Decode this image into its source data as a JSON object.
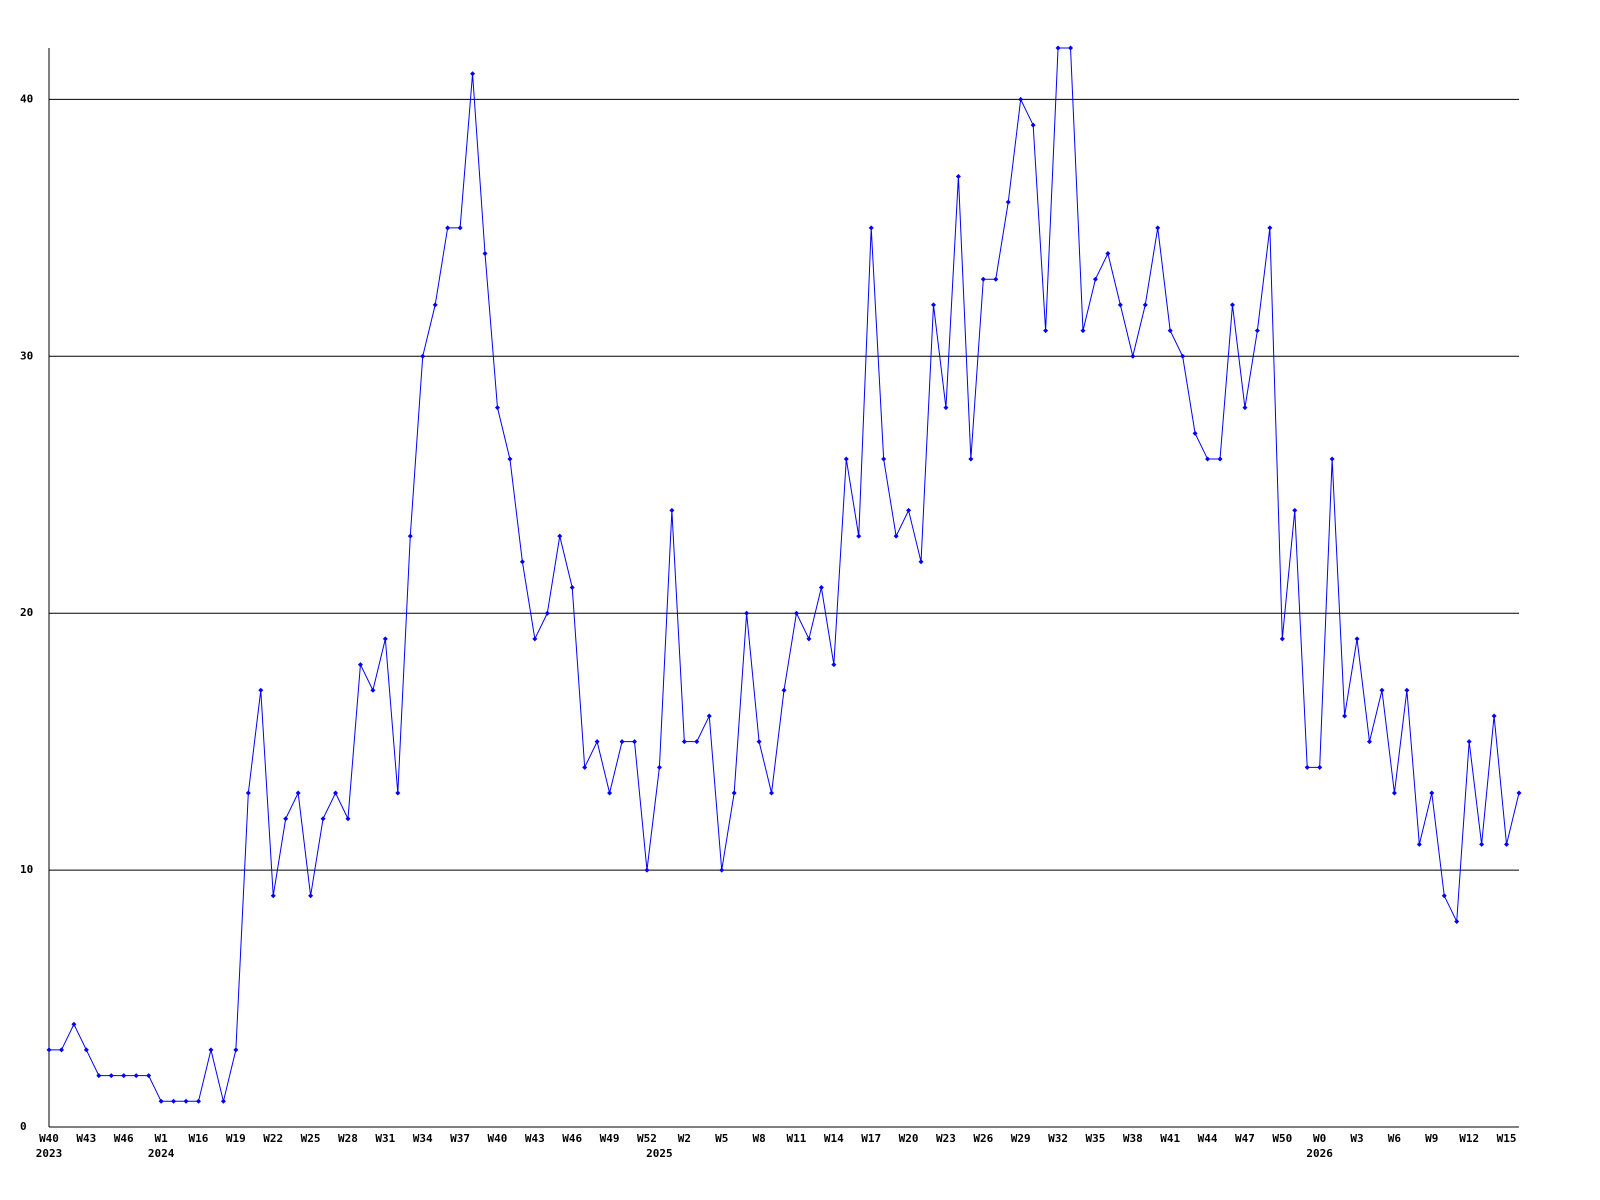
{
  "chart_data": {
    "type": "line",
    "categories": [
      "W40",
      null,
      null,
      "W43",
      null,
      null,
      "W46",
      null,
      null,
      "W1",
      null,
      null,
      "W16",
      null,
      null,
      "W19",
      null,
      null,
      "W22",
      null,
      null,
      "W25",
      null,
      null,
      "W28",
      null,
      null,
      "W31",
      null,
      null,
      "W34",
      null,
      null,
      "W37",
      null,
      null,
      "W40",
      null,
      null,
      "W43",
      null,
      null,
      "W46",
      null,
      null,
      "W49",
      null,
      null,
      "W52",
      null,
      null,
      "W2",
      null,
      null,
      "W5",
      null,
      null,
      "W8",
      null,
      null,
      "W11",
      null,
      null,
      "W14",
      null,
      null,
      "W17",
      null,
      null,
      "W20",
      null,
      null,
      "W23",
      null,
      null,
      "W26",
      null,
      null,
      "W29",
      null,
      null,
      "W32",
      null,
      null,
      "W35",
      null,
      null,
      "W38",
      null,
      null,
      "W41",
      null,
      null,
      "W44",
      null,
      null,
      "W47",
      null,
      null,
      "W50",
      null,
      null,
      "W0",
      null,
      null,
      "W3",
      null,
      null,
      "W6",
      null,
      null,
      "W9",
      null,
      null,
      "W12",
      null,
      null,
      "W15",
      null
    ],
    "year_labels": [
      "2023",
      null,
      null,
      null,
      null,
      null,
      null,
      null,
      null,
      "2024",
      null,
      null,
      null,
      null,
      null,
      null,
      null,
      null,
      null,
      null,
      null,
      null,
      null,
      null,
      null,
      null,
      null,
      null,
      null,
      null,
      null,
      null,
      null,
      null,
      null,
      null,
      null,
      null,
      null,
      null,
      null,
      null,
      null,
      null,
      null,
      null,
      null,
      null,
      null,
      "2025",
      null,
      null,
      null,
      null,
      null,
      null,
      null,
      null,
      null,
      null,
      null,
      null,
      null,
      null,
      null,
      null,
      null,
      null,
      null,
      null,
      null,
      null,
      null,
      null,
      null,
      null,
      null,
      null,
      null,
      null,
      null,
      null,
      null,
      null,
      null,
      null,
      null,
      null,
      null,
      null,
      null,
      null,
      null,
      null,
      null,
      null,
      null,
      null,
      null,
      null,
      null,
      null,
      "2026",
      null,
      null,
      null,
      null,
      null,
      null,
      null,
      null,
      null,
      null,
      null,
      null,
      null,
      null,
      null,
      null
    ],
    "series": [
      {
        "color": "#0000ff",
        "values": [
          3,
          3,
          4,
          3,
          2,
          2,
          2,
          2,
          2,
          1,
          1,
          1,
          1,
          3,
          1,
          3,
          13,
          17,
          9,
          12,
          13,
          9,
          12,
          13,
          12,
          18,
          17,
          19,
          13,
          23,
          30,
          32,
          35,
          35,
          41,
          34,
          28,
          26,
          22,
          19,
          20,
          23,
          21,
          14,
          15,
          13,
          15,
          15,
          10,
          14,
          24,
          15,
          15,
          16,
          10,
          13,
          20,
          15,
          13,
          17,
          20,
          19,
          21,
          18,
          26,
          23,
          35,
          26,
          23,
          24,
          22,
          32,
          28,
          37,
          26,
          33,
          33,
          36,
          40,
          39,
          31,
          42,
          42,
          31,
          33,
          34,
          32,
          30,
          32,
          35,
          31,
          30,
          27,
          26,
          26,
          32,
          28,
          31,
          35,
          19,
          24,
          14,
          14,
          26,
          16,
          19,
          15,
          17,
          13,
          17,
          11,
          13,
          9,
          8,
          15,
          11,
          16,
          11,
          13
        ]
      }
    ],
    "ylim": [
      0,
      42
    ],
    "yticks": [
      0,
      10,
      20,
      30,
      40
    ],
    "grid": true
  }
}
